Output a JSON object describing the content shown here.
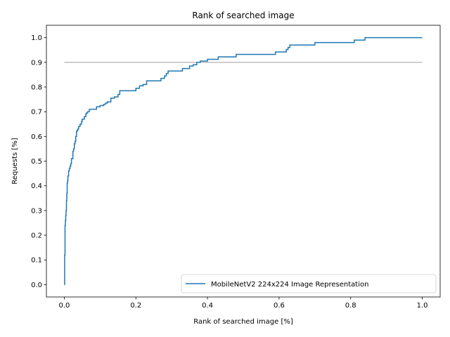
{
  "chart_data": {
    "type": "line",
    "title": "Rank of searched image",
    "xlabel": "Rank of searched image [%]",
    "ylabel": "Requests [%]",
    "xlim": [
      -0.05,
      1.05
    ],
    "ylim": [
      -0.05,
      1.05
    ],
    "xticks": [
      0.0,
      0.2,
      0.4,
      0.6,
      0.8,
      1.0
    ],
    "xtick_labels": [
      "0.0",
      "0.2",
      "0.4",
      "0.6",
      "0.8",
      "1.0"
    ],
    "yticks": [
      0.0,
      0.1,
      0.2,
      0.3,
      0.4,
      0.5,
      0.6,
      0.7,
      0.8,
      0.9,
      1.0
    ],
    "ytick_labels": [
      "0.0",
      "0.1",
      "0.2",
      "0.3",
      "0.4",
      "0.5",
      "0.6",
      "0.7",
      "0.8",
      "0.9",
      "1.0"
    ],
    "grid": false,
    "legend_position": "bottom-right",
    "reference_line": {
      "y": 0.9,
      "x_range": [
        0.0,
        1.0
      ],
      "color": "#bfbfbf"
    },
    "series": [
      {
        "name": "MobileNetV2 224x224 Image Representation",
        "color": "#1f77b4",
        "step": true,
        "x": [
          0.0,
          0.001,
          0.002,
          0.003,
          0.004,
          0.005,
          0.006,
          0.007,
          0.008,
          0.009,
          0.01,
          0.012,
          0.014,
          0.016,
          0.018,
          0.02,
          0.024,
          0.026,
          0.028,
          0.03,
          0.032,
          0.034,
          0.036,
          0.038,
          0.04,
          0.044,
          0.048,
          0.05,
          0.056,
          0.06,
          0.062,
          0.065,
          0.07,
          0.08,
          0.09,
          0.1,
          0.11,
          0.115,
          0.12,
          0.13,
          0.14,
          0.15,
          0.155,
          0.16,
          0.2,
          0.21,
          0.22,
          0.23,
          0.27,
          0.28,
          0.285,
          0.29,
          0.3,
          0.33,
          0.35,
          0.36,
          0.37,
          0.38,
          0.4,
          0.43,
          0.48,
          0.59,
          0.62,
          0.625,
          0.63,
          0.7,
          0.81,
          0.84,
          1.0
        ],
        "y": [
          0.0,
          0.12,
          0.24,
          0.26,
          0.28,
          0.3,
          0.34,
          0.37,
          0.41,
          0.42,
          0.44,
          0.46,
          0.47,
          0.48,
          0.49,
          0.51,
          0.54,
          0.55,
          0.57,
          0.58,
          0.6,
          0.62,
          0.625,
          0.63,
          0.64,
          0.65,
          0.66,
          0.67,
          0.68,
          0.69,
          0.695,
          0.7,
          0.71,
          0.71,
          0.72,
          0.725,
          0.73,
          0.735,
          0.74,
          0.755,
          0.76,
          0.77,
          0.785,
          0.785,
          0.795,
          0.805,
          0.81,
          0.825,
          0.835,
          0.845,
          0.855,
          0.865,
          0.865,
          0.875,
          0.885,
          0.89,
          0.9,
          0.905,
          0.912,
          0.922,
          0.932,
          0.942,
          0.952,
          0.96,
          0.97,
          0.98,
          0.99,
          1.0,
          1.0
        ]
      }
    ]
  }
}
